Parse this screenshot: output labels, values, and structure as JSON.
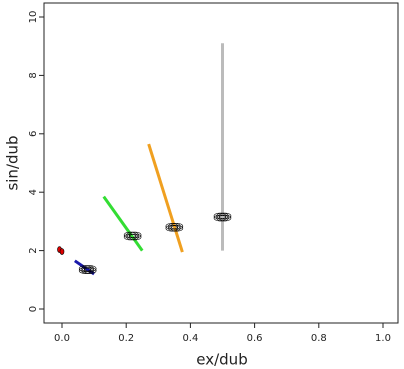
{
  "chart_data": {
    "type": "scatter",
    "xlabel": "ex/dub",
    "ylabel": "sin/dub",
    "xlim": [
      0,
      1.0
    ],
    "ylim": [
      0,
      10
    ],
    "xticks": [
      {
        "value": 0,
        "label": "0.0"
      },
      0.2,
      0.4,
      0.6,
      0.8,
      {
        "value": 1,
        "label": "1.0"
      }
    ],
    "yticks": [
      0,
      2,
      4,
      6,
      8,
      10
    ],
    "segments": [
      {
        "color": "#1a1aaa",
        "x": [
          0.04,
          0.1
        ],
        "y": [
          1.65,
          1.2
        ]
      },
      {
        "color": "#33dd33",
        "x": [
          0.13,
          0.25
        ],
        "y": [
          3.85,
          2.0
        ]
      },
      {
        "color": "#f0a020",
        "x": [
          0.27,
          0.375
        ],
        "y": [
          5.65,
          1.95
        ]
      },
      {
        "color": "#bbbbbb",
        "x": [
          0.5,
          0.5
        ],
        "y": [
          9.1,
          2.0
        ]
      }
    ],
    "points": {
      "x": [
        0,
        0.08,
        0.22,
        0.35,
        0.5
      ],
      "y": [
        2.0,
        1.35,
        2.5,
        2.8,
        3.15
      ],
      "colors": [
        "#e00000",
        "#000000",
        "#000000",
        "#000000",
        "#000000"
      ]
    }
  }
}
